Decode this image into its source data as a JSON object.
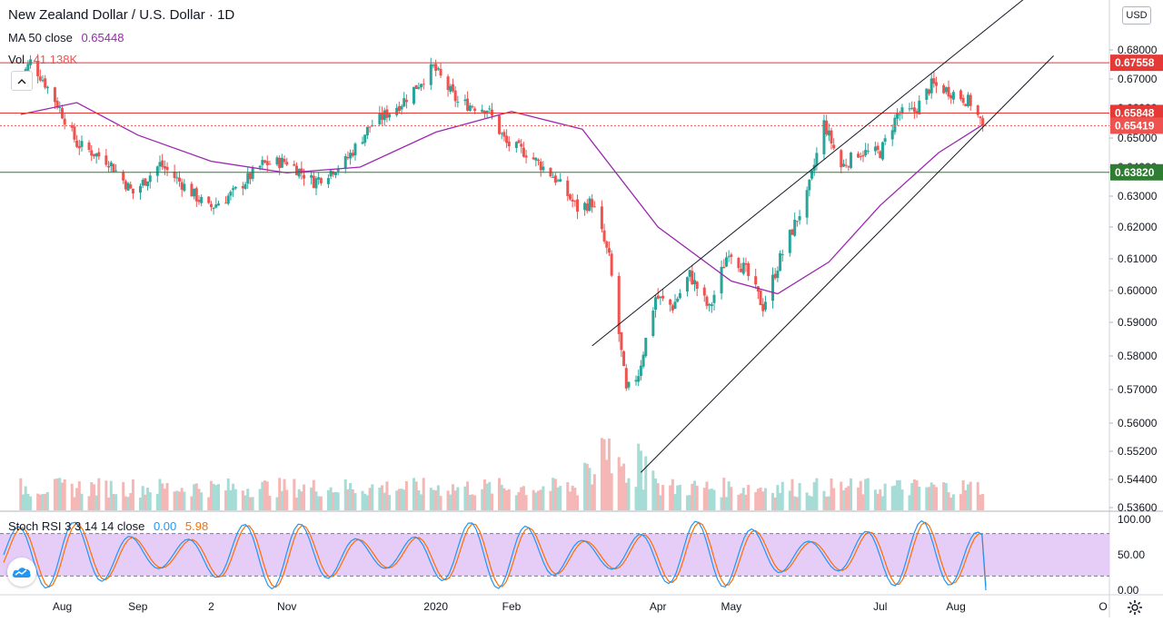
{
  "header": {
    "symbol_title": "New Zealand Dollar / U.S. Dollar · 1D",
    "ma_label": "MA 50 close",
    "ma_value": "0.65448",
    "vol_label": "Vol",
    "vol_value": "41.138K",
    "currency": "USD"
  },
  "stoch_legend": {
    "label": "Stoch RSI 3 3 14 14 close",
    "k_value": "0.00",
    "d_value": "5.98"
  },
  "colors": {
    "up": "#26a69a",
    "down": "#ef5350",
    "ma": "#9c27b0",
    "resistance": "#e53935",
    "support": "#2e7d32",
    "stoch_k": "#2196f3",
    "stoch_d": "#ff6d00",
    "stoch_band": "#e1c4f7"
  },
  "chart_data": [
    {
      "type": "candlestick",
      "title": "New Zealand Dollar / U.S. Dollar · 1D",
      "ylim": [
        0.536,
        0.692
      ],
      "y_ticks": [
        "0.68000",
        "0.67000",
        "0.66000",
        "0.65000",
        "0.64000",
        "0.63000",
        "0.62000",
        "0.61000",
        "0.60000",
        "0.59000",
        "0.58000",
        "0.57000",
        "0.56000",
        "0.55200",
        "0.54400",
        "0.53600"
      ],
      "x_ticks": [
        "Aug",
        "Sep",
        "2",
        "Nov",
        "2020",
        "Feb",
        "Apr",
        "May",
        "Jul",
        "Aug",
        "O"
      ],
      "close_path": [
        [
          "2019-07-15",
          0.67
        ],
        [
          "2019-07-19",
          0.676
        ],
        [
          "2019-07-24",
          0.67
        ],
        [
          "2019-07-31",
          0.66
        ],
        [
          "2019-08-07",
          0.648
        ],
        [
          "2019-08-20",
          0.642
        ],
        [
          "2019-08-30",
          0.631
        ],
        [
          "2019-09-10",
          0.641
        ],
        [
          "2019-09-18",
          0.635
        ],
        [
          "2019-09-30",
          0.626
        ],
        [
          "2019-10-10",
          0.631
        ],
        [
          "2019-10-22",
          0.641
        ],
        [
          "2019-11-01",
          0.642
        ],
        [
          "2019-11-12",
          0.635
        ],
        [
          "2019-11-25",
          0.642
        ],
        [
          "2019-12-05",
          0.654
        ],
        [
          "2019-12-18",
          0.662
        ],
        [
          "2019-12-31",
          0.674
        ],
        [
          "2020-01-10",
          0.662
        ],
        [
          "2020-01-22",
          0.66
        ],
        [
          "2020-01-30",
          0.648
        ],
        [
          "2020-02-07",
          0.645
        ],
        [
          "2020-02-18",
          0.637
        ],
        [
          "2020-02-28",
          0.626
        ],
        [
          "2020-03-05",
          0.628
        ],
        [
          "2020-03-12",
          0.61
        ],
        [
          "2020-03-19",
          0.569
        ],
        [
          "2020-03-24",
          0.575
        ],
        [
          "2020-03-31",
          0.598
        ],
        [
          "2020-04-07",
          0.595
        ],
        [
          "2020-04-14",
          0.605
        ],
        [
          "2020-04-22",
          0.594
        ],
        [
          "2020-04-30",
          0.613
        ],
        [
          "2020-05-07",
          0.606
        ],
        [
          "2020-05-14",
          0.595
        ],
        [
          "2020-05-21",
          0.61
        ],
        [
          "2020-06-01",
          0.63
        ],
        [
          "2020-06-08",
          0.655
        ],
        [
          "2020-06-15",
          0.64
        ],
        [
          "2020-06-22",
          0.645
        ],
        [
          "2020-07-01",
          0.645
        ],
        [
          "2020-07-08",
          0.658
        ],
        [
          "2020-07-15",
          0.659
        ],
        [
          "2020-07-22",
          0.668
        ],
        [
          "2020-07-29",
          0.666
        ],
        [
          "2020-08-03",
          0.664
        ],
        [
          "2020-08-07",
          0.662
        ],
        [
          "2020-08-12",
          0.6542
        ]
      ],
      "volume_label": "41.138K"
    },
    {
      "type": "line",
      "name": "MA 50 close",
      "last_value": 0.65448,
      "points": [
        [
          "2019-07-15",
          0.658
        ],
        [
          "2019-08-07",
          0.662
        ],
        [
          "2019-09-01",
          0.651
        ],
        [
          "2019-10-01",
          0.642
        ],
        [
          "2019-11-01",
          0.638
        ],
        [
          "2019-12-01",
          0.64
        ],
        [
          "2020-01-01",
          0.652
        ],
        [
          "2020-02-01",
          0.659
        ],
        [
          "2020-03-01",
          0.653
        ],
        [
          "2020-04-01",
          0.62
        ],
        [
          "2020-05-01",
          0.603
        ],
        [
          "2020-05-20",
          0.599
        ],
        [
          "2020-06-10",
          0.609
        ],
        [
          "2020-07-01",
          0.627
        ],
        [
          "2020-07-25",
          0.645
        ],
        [
          "2020-08-12",
          0.6545
        ]
      ]
    },
    {
      "type": "line",
      "name": "Stoch RSI 3 3 14 14 close",
      "ylim": [
        0,
        100
      ],
      "y_ticks": [
        "100.00",
        "50.00",
        "0.00"
      ],
      "bands": [
        20,
        80
      ],
      "k_last": 0.0,
      "d_last": 5.98
    }
  ],
  "price_levels": [
    {
      "label": "0.67558",
      "kind": "resistance"
    },
    {
      "label": "0.65848",
      "kind": "resistance"
    },
    {
      "label": "0.65419",
      "kind": "current"
    },
    {
      "label": "0.63820",
      "kind": "support"
    }
  ]
}
